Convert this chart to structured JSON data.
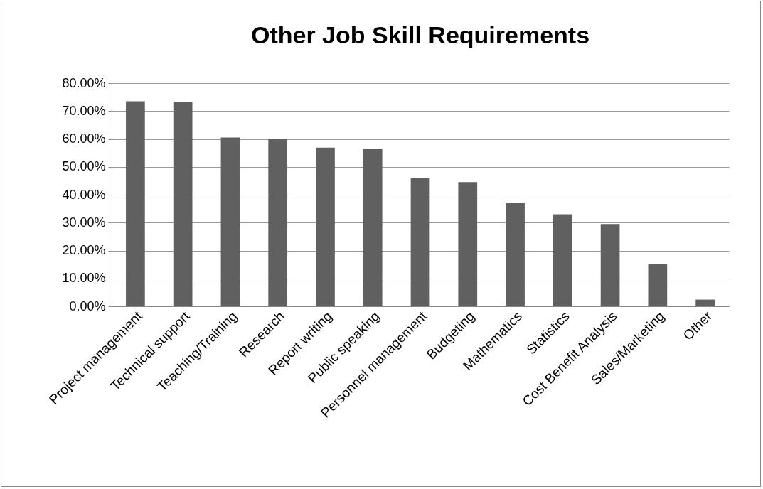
{
  "chart_data": {
    "type": "bar",
    "title": "Other Job Skill Requirements",
    "categories": [
      "Project management",
      "Technical support",
      "Teaching/Training",
      "Research",
      "Report writing",
      "Public speaking",
      "Personnel management",
      "Budgeting",
      "Mathematics",
      "Statistics",
      "Cost Benefit Analysis",
      "Sales/Marketing",
      "Other"
    ],
    "values": [
      73.5,
      73.2,
      60.5,
      60.0,
      56.9,
      56.5,
      46.1,
      44.5,
      37.0,
      33.0,
      29.5,
      15.1,
      2.4
    ],
    "color": "#606060",
    "ylim": [
      0,
      80
    ],
    "yticks": [
      {
        "value": 0,
        "label": "0.00%"
      },
      {
        "value": 10,
        "label": "10.00%"
      },
      {
        "value": 20,
        "label": "20.00%"
      },
      {
        "value": 30,
        "label": "30.00%"
      },
      {
        "value": 40,
        "label": "40.00%"
      },
      {
        "value": 50,
        "label": "50.00%"
      },
      {
        "value": 60,
        "label": "60.00%"
      },
      {
        "value": 70,
        "label": "70.00%"
      },
      {
        "value": 80,
        "label": "80.00%"
      }
    ],
    "grid": "y"
  }
}
